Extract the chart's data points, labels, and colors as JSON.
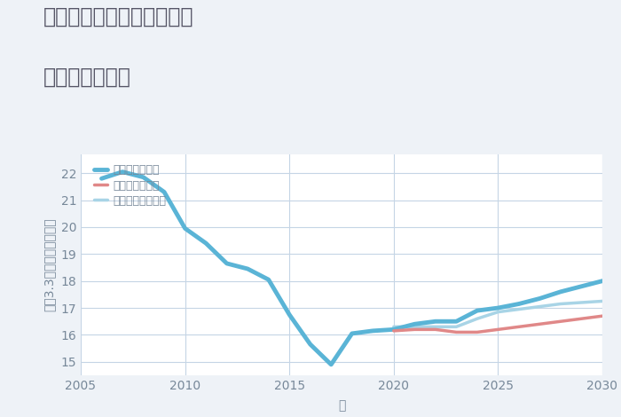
{
  "title_line1": "兵庫県豊岡市但東町矢根の",
  "title_line2": "土地の価格推移",
  "xlabel": "年",
  "ylabel": "坪（3.3㎡）単価（万円）",
  "background_color": "#eef2f7",
  "plot_bg_color": "#ffffff",
  "grid_color": "#c5d5e5",
  "xlim": [
    2005,
    2030
  ],
  "ylim": [
    14.5,
    22.7
  ],
  "yticks": [
    15,
    16,
    17,
    18,
    19,
    20,
    21,
    22
  ],
  "xticks": [
    2005,
    2010,
    2015,
    2020,
    2025,
    2030
  ],
  "good_scenario": {
    "label": "グッドシナリオ",
    "color": "#5ab4d6",
    "linewidth": 3.5,
    "x": [
      2006,
      2007,
      2008,
      2009,
      2010,
      2011,
      2012,
      2013,
      2014,
      2015,
      2016,
      2017,
      2018,
      2019,
      2020,
      2021,
      2022,
      2023,
      2024,
      2025,
      2026,
      2027,
      2028,
      2029,
      2030
    ],
    "y": [
      21.8,
      22.05,
      21.85,
      21.3,
      19.95,
      19.4,
      18.65,
      18.45,
      18.05,
      16.75,
      15.65,
      14.9,
      16.05,
      16.15,
      16.2,
      16.4,
      16.5,
      16.5,
      16.9,
      17.0,
      17.15,
      17.35,
      17.6,
      17.8,
      18.0
    ]
  },
  "bad_scenario": {
    "label": "バッドシナリオ",
    "color": "#e08888",
    "linewidth": 2.5,
    "x": [
      2020,
      2021,
      2022,
      2023,
      2024,
      2025,
      2026,
      2027,
      2028,
      2029,
      2030
    ],
    "y": [
      16.15,
      16.2,
      16.2,
      16.1,
      16.1,
      16.2,
      16.3,
      16.4,
      16.5,
      16.6,
      16.7
    ]
  },
  "normal_scenario": {
    "label": "ノーマルシナリオ",
    "color": "#a8d4e6",
    "linewidth": 2.5,
    "x": [
      2020,
      2021,
      2022,
      2023,
      2024,
      2025,
      2026,
      2027,
      2028,
      2029,
      2030
    ],
    "y": [
      16.3,
      16.3,
      16.3,
      16.3,
      16.6,
      16.85,
      16.95,
      17.05,
      17.15,
      17.2,
      17.25
    ]
  },
  "title_color": "#555566",
  "axis_label_color": "#778899",
  "tick_color": "#778899",
  "title_fontsize": 17,
  "tick_fontsize": 10,
  "axis_label_fontsize": 10
}
